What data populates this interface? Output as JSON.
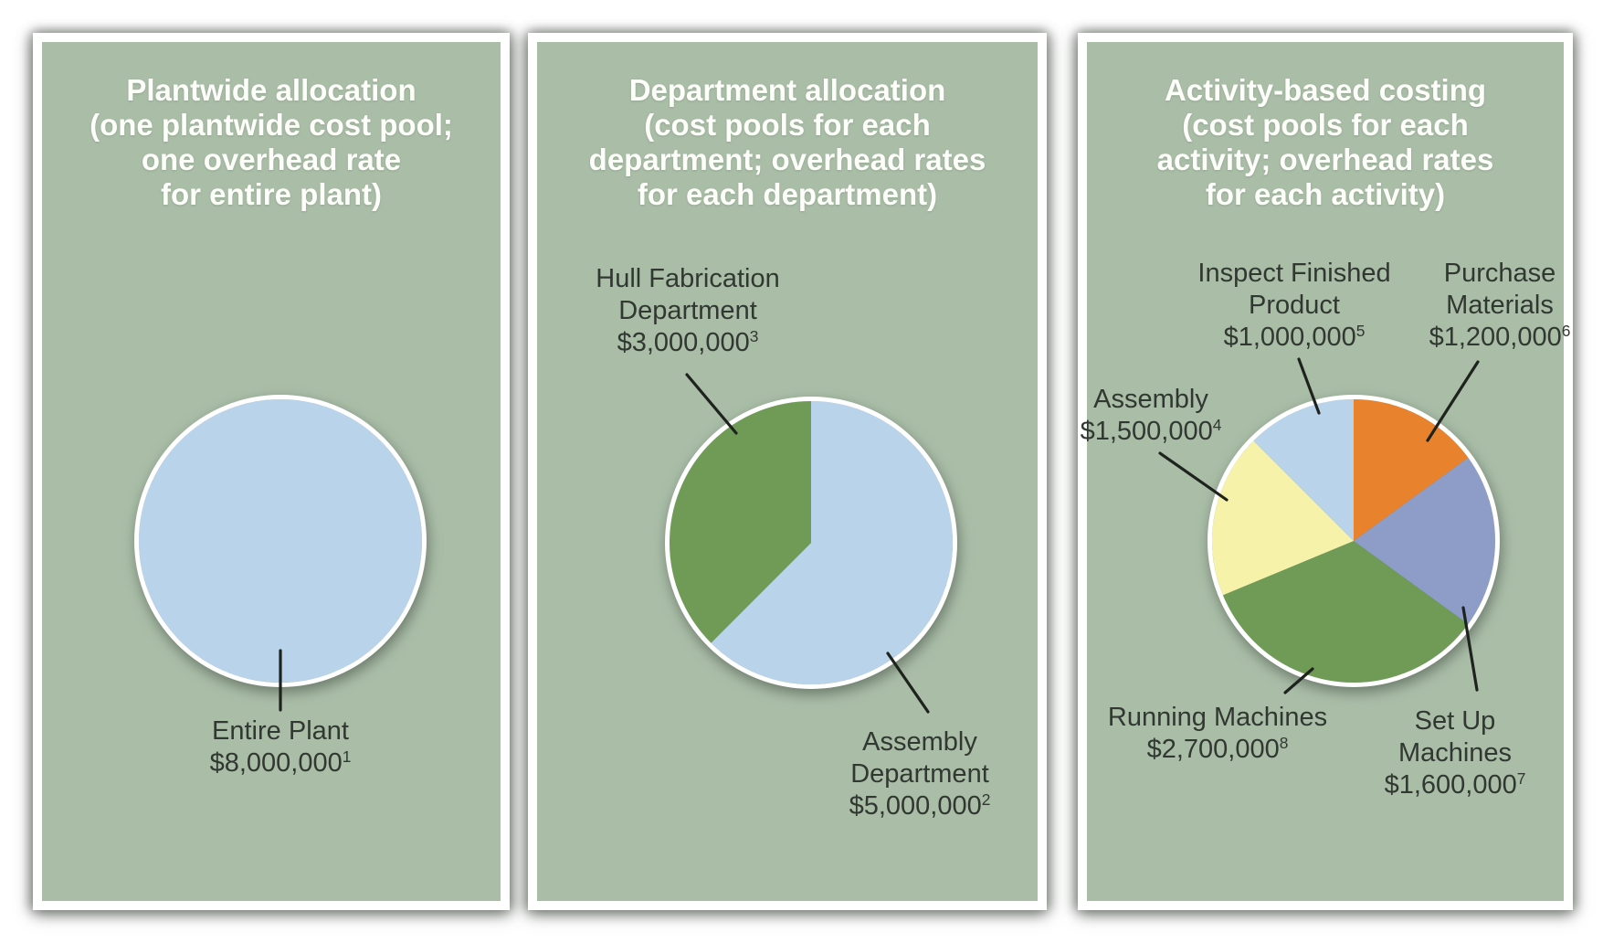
{
  "panels": [
    {
      "title_lines": [
        "Plantwide allocation",
        "(one plantwide cost pool;",
        "one overhead rate",
        "for entire plant)"
      ],
      "callouts": [
        {
          "lines": [
            "Entire Plant"
          ],
          "amount": "$8,000,000",
          "footnote": "1"
        }
      ]
    },
    {
      "title_lines": [
        "Department allocation",
        "(cost pools for each",
        "department; overhead rates",
        "for each department)"
      ],
      "callouts": [
        {
          "lines": [
            "Hull Fabrication",
            "Department"
          ],
          "amount": "$3,000,000",
          "footnote": "3"
        },
        {
          "lines": [
            "Assembly",
            "Department"
          ],
          "amount": "$5,000,000",
          "footnote": "2"
        }
      ]
    },
    {
      "title_lines": [
        "Activity-based costing",
        "(cost pools for each",
        "activity; overhead rates",
        "for each activity)"
      ],
      "callouts": [
        {
          "lines": [
            "Inspect Finished",
            "Product"
          ],
          "amount": "$1,000,000",
          "footnote": "5"
        },
        {
          "lines": [
            "Purchase",
            "Materials"
          ],
          "amount": "$1,200,000",
          "footnote": "6"
        },
        {
          "lines": [
            "Assembly"
          ],
          "amount": "$1,500,000",
          "footnote": "4"
        },
        {
          "lines": [
            "Running Machines"
          ],
          "amount": "$2,700,000",
          "footnote": "8"
        },
        {
          "lines": [
            "Set Up",
            "Machines"
          ],
          "amount": "$1,600,000",
          "footnote": "7"
        }
      ]
    }
  ],
  "chart_data": [
    {
      "type": "pie",
      "title": "Plantwide allocation (one plantwide cost pool; one overhead rate for entire plant)",
      "start_angle": "12 o'clock",
      "direction": "clockwise",
      "slices": [
        {
          "label": "Entire Plant",
          "value": 8000000,
          "amount": "$8,000,000",
          "footnote": "1",
          "color": "#b9d3eb"
        }
      ]
    },
    {
      "type": "pie",
      "title": "Department allocation (cost pools for each department; overhead rates for each department)",
      "start_angle": "12 o'clock",
      "direction": "clockwise",
      "slices": [
        {
          "label": "Assembly Department",
          "value": 5000000,
          "amount": "$5,000,000",
          "footnote": "2",
          "color": "#b9d3eb"
        },
        {
          "label": "Hull Fabrication Department",
          "value": 3000000,
          "amount": "$3,000,000",
          "footnote": "3",
          "color": "#6f9b57"
        }
      ]
    },
    {
      "type": "pie",
      "title": "Activity-based costing (cost pools for each activity; overhead rates for each activity)",
      "start_angle": "12 o'clock",
      "direction": "clockwise",
      "slices": [
        {
          "label": "Purchase Materials",
          "value": 1200000,
          "amount": "$1,200,000",
          "footnote": "6",
          "color": "#e8822c"
        },
        {
          "label": "Set Up Machines",
          "value": 1600000,
          "amount": "$1,600,000",
          "footnote": "7",
          "color": "#8e9dc8"
        },
        {
          "label": "Running Machines",
          "value": 2700000,
          "amount": "$2,700,000",
          "footnote": "8",
          "color": "#6f9b57"
        },
        {
          "label": "Assembly",
          "value": 1500000,
          "amount": "$1,500,000",
          "footnote": "4",
          "color": "#f7f2a9"
        },
        {
          "label": "Inspect Finished Product",
          "value": 1000000,
          "amount": "$1,000,000",
          "footnote": "5",
          "color": "#b9d3eb"
        }
      ]
    }
  ]
}
